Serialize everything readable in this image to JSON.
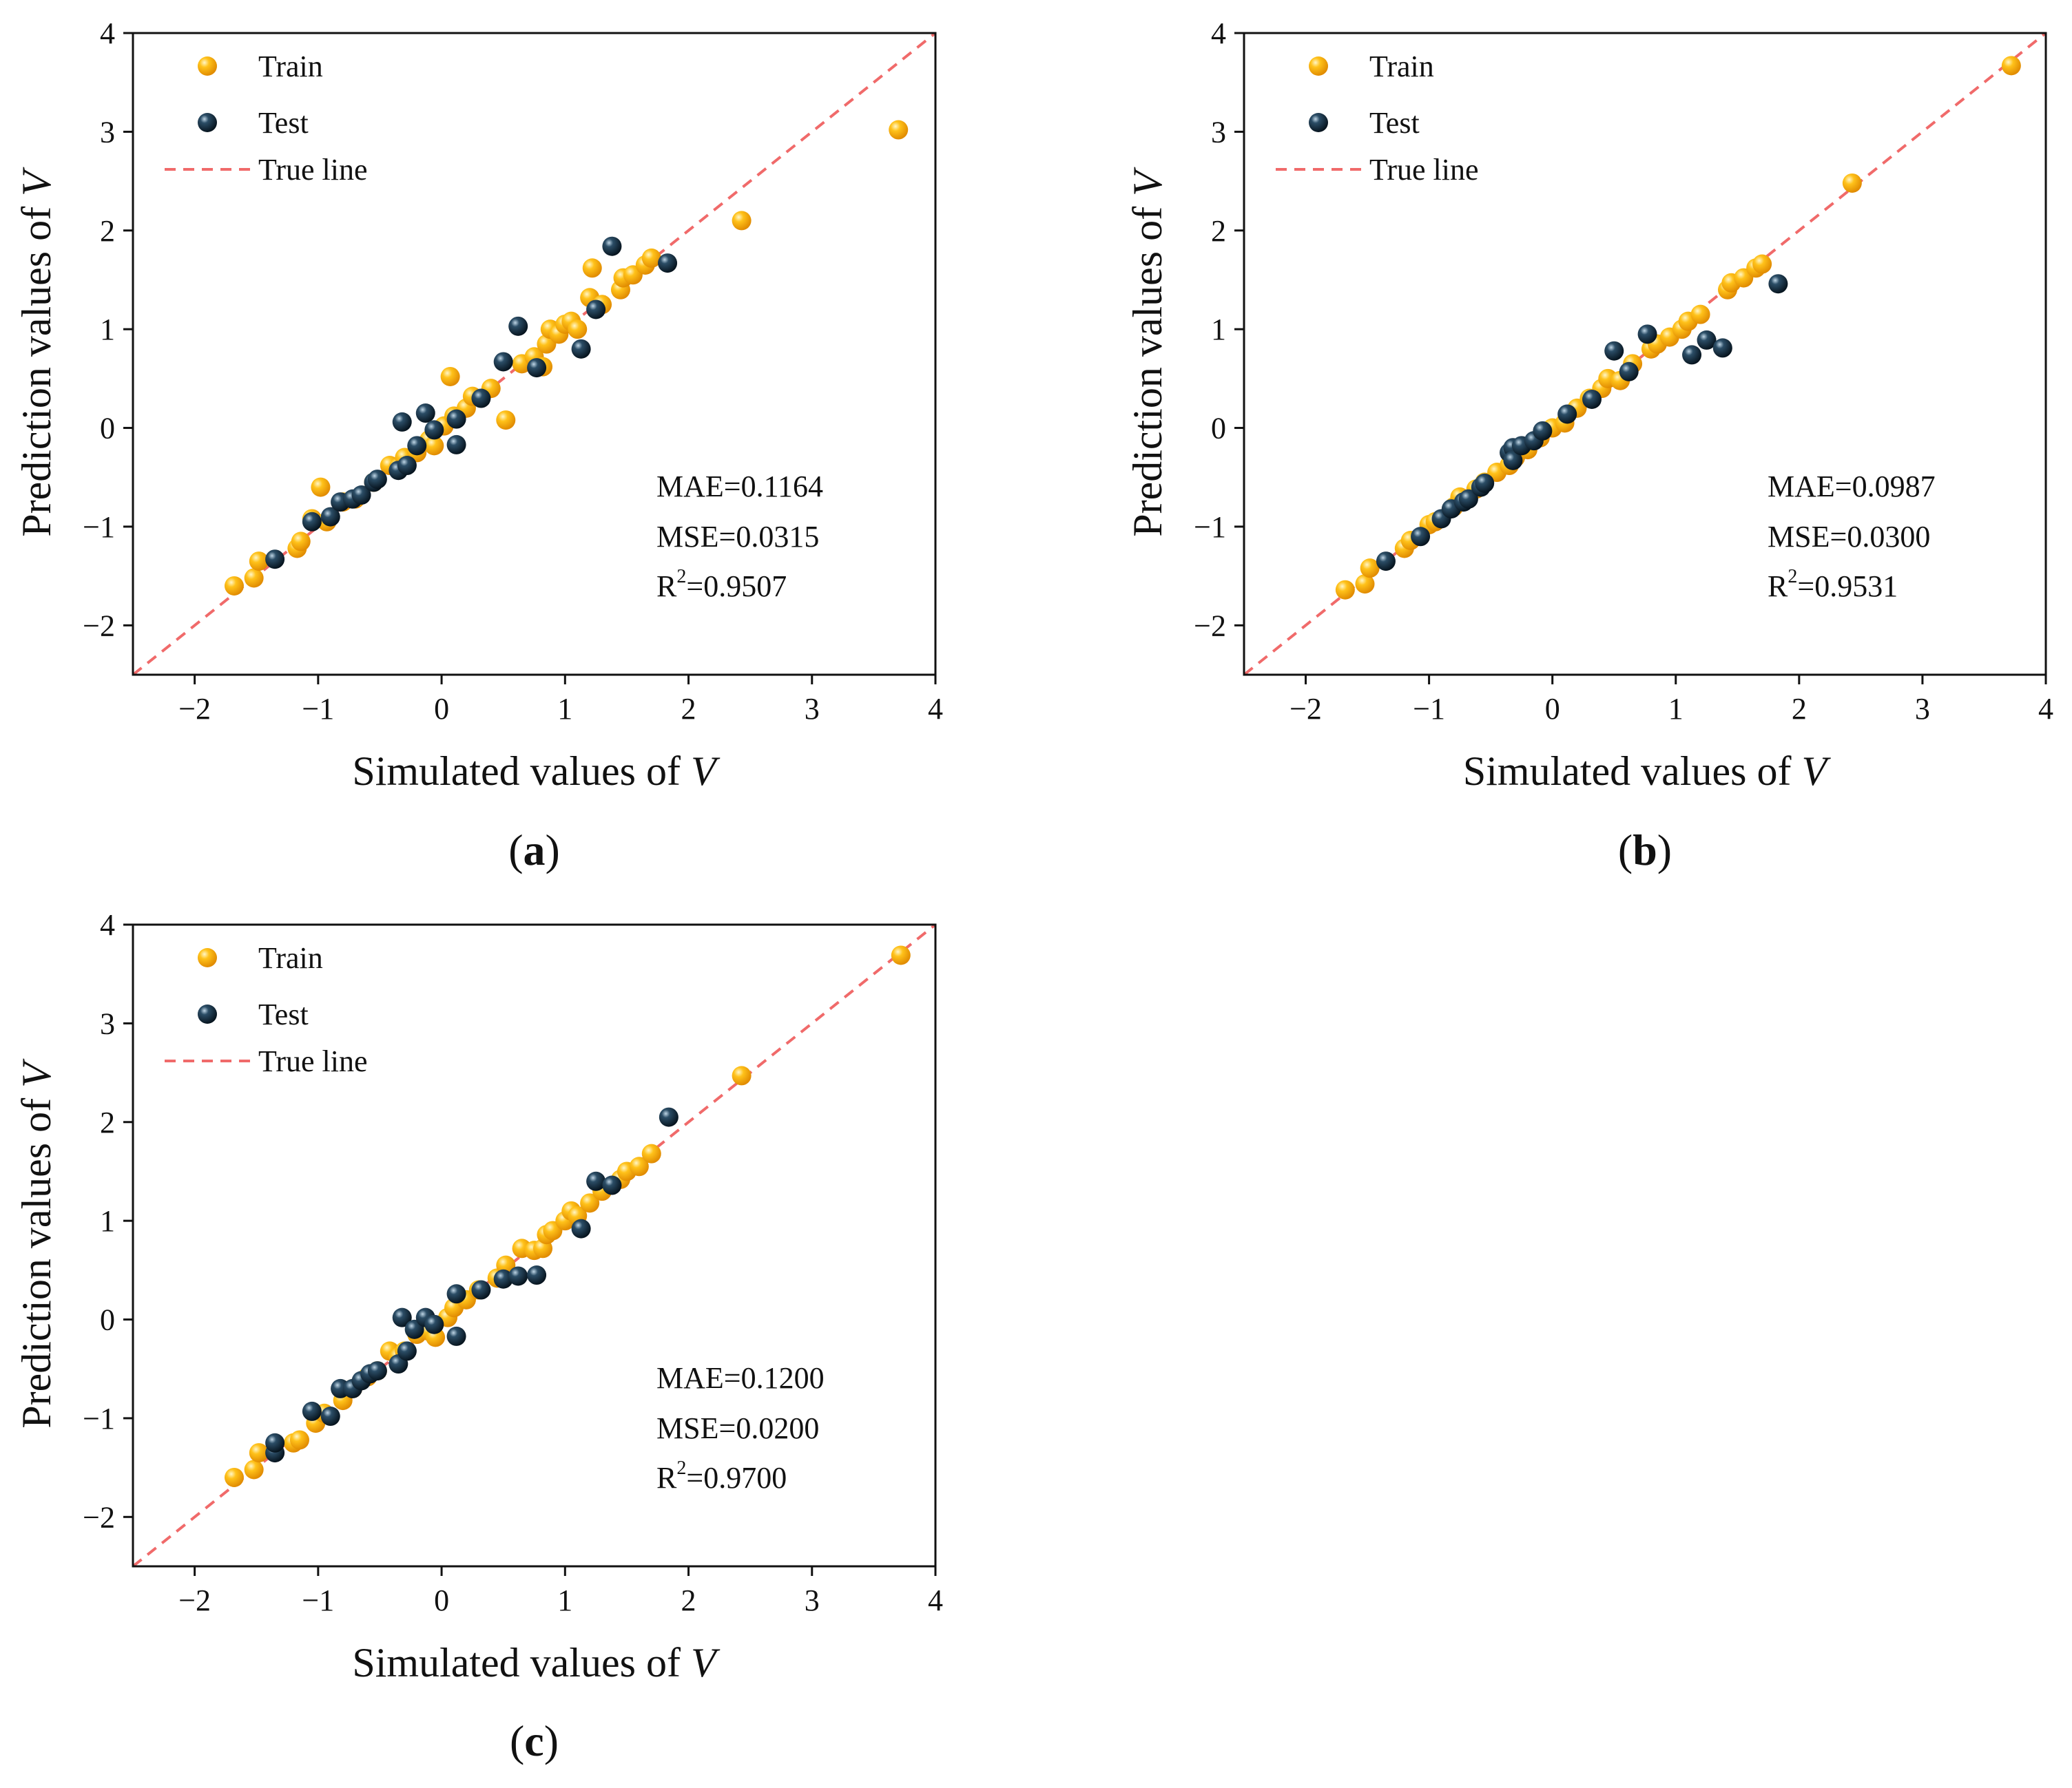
{
  "chart_data": [
    {
      "type": "scatter",
      "panel_label": {
        "open": "(",
        "letter": "a",
        "close": ")"
      },
      "xlabel": {
        "text": "Simulated values of ",
        "var": "V"
      },
      "ylabel": {
        "text": "Prediction values of ",
        "var": "V"
      },
      "xlim": [
        -2.5,
        4
      ],
      "ylim": [
        -2.5,
        4
      ],
      "xticks": [
        -2,
        -1,
        0,
        1,
        2,
        3,
        4
      ],
      "yticks": [
        -2,
        -1,
        0,
        1,
        2,
        3,
        4
      ],
      "grid": false,
      "legend_position": "top-left",
      "series": [
        {
          "name": "Train",
          "color": "#FFB300",
          "marker": "sphere",
          "points": [
            [
              -1.68,
              -1.6
            ],
            [
              -1.52,
              -1.52
            ],
            [
              -1.48,
              -1.35
            ],
            [
              -1.17,
              -1.22
            ],
            [
              -1.14,
              -1.15
            ],
            [
              -1.05,
              -0.92
            ],
            [
              -0.98,
              -0.6
            ],
            [
              -0.93,
              -0.95
            ],
            [
              -0.8,
              -0.75
            ],
            [
              -0.7,
              -0.72
            ],
            [
              -0.55,
              -0.55
            ],
            [
              -0.42,
              -0.38
            ],
            [
              -0.35,
              -0.4
            ],
            [
              -0.3,
              -0.3
            ],
            [
              -0.2,
              -0.25
            ],
            [
              -0.1,
              -0.12
            ],
            [
              -0.06,
              -0.18
            ],
            [
              0.02,
              0.02
            ],
            [
              0.07,
              0.52
            ],
            [
              0.1,
              0.12
            ],
            [
              0.2,
              0.2
            ],
            [
              0.25,
              0.32
            ],
            [
              0.4,
              0.4
            ],
            [
              0.52,
              0.08
            ],
            [
              0.65,
              0.65
            ],
            [
              0.75,
              0.72
            ],
            [
              0.82,
              0.62
            ],
            [
              0.85,
              0.85
            ],
            [
              0.88,
              1.0
            ],
            [
              0.95,
              0.95
            ],
            [
              1.0,
              1.05
            ],
            [
              1.05,
              1.08
            ],
            [
              1.1,
              1.0
            ],
            [
              1.2,
              1.32
            ],
            [
              1.22,
              1.62
            ],
            [
              1.3,
              1.25
            ],
            [
              1.45,
              1.4
            ],
            [
              1.47,
              1.52
            ],
            [
              1.55,
              1.55
            ],
            [
              1.65,
              1.65
            ],
            [
              1.7,
              1.72
            ],
            [
              2.43,
              2.1
            ],
            [
              3.7,
              3.02
            ]
          ]
        },
        {
          "name": "Test",
          "color": "#0C2233",
          "marker": "sphere",
          "points": [
            [
              -1.35,
              -1.33
            ],
            [
              -1.05,
              -0.95
            ],
            [
              -0.9,
              -0.9
            ],
            [
              -0.82,
              -0.75
            ],
            [
              -0.72,
              -0.72
            ],
            [
              -0.65,
              -0.68
            ],
            [
              -0.55,
              -0.55
            ],
            [
              -0.52,
              -0.52
            ],
            [
              -0.35,
              -0.43
            ],
            [
              -0.32,
              0.06
            ],
            [
              -0.28,
              -0.38
            ],
            [
              -0.2,
              -0.18
            ],
            [
              -0.13,
              0.15
            ],
            [
              -0.06,
              -0.02
            ],
            [
              0.12,
              0.09
            ],
            [
              0.12,
              -0.17
            ],
            [
              0.32,
              0.3
            ],
            [
              0.5,
              0.67
            ],
            [
              0.62,
              1.03
            ],
            [
              0.77,
              0.61
            ],
            [
              1.13,
              0.8
            ],
            [
              1.25,
              1.2
            ],
            [
              1.38,
              1.84
            ],
            [
              1.83,
              1.67
            ]
          ]
        },
        {
          "name": "True line",
          "color": "#F06A6A",
          "type": "line",
          "style": "dashed",
          "x": [
            -2.5,
            4
          ],
          "y": [
            -2.5,
            4
          ]
        }
      ],
      "annotations": [
        {
          "label": "MAE",
          "value": "0.1164"
        },
        {
          "label": "MSE",
          "value": "0.0315"
        },
        {
          "label": "R",
          "sup": "2",
          "value": "0.9507"
        }
      ]
    },
    {
      "type": "scatter",
      "panel_label": {
        "open": "(",
        "letter": "b",
        "close": ")"
      },
      "xlabel": {
        "text": "Simulated values of ",
        "var": "V"
      },
      "ylabel": {
        "text": "Prediction values of ",
        "var": "V"
      },
      "xlim": [
        -2.5,
        4
      ],
      "ylim": [
        -2.5,
        4
      ],
      "xticks": [
        -2,
        -1,
        0,
        1,
        2,
        3,
        4
      ],
      "yticks": [
        -2,
        -1,
        0,
        1,
        2,
        3,
        4
      ],
      "grid": false,
      "legend_position": "top-left",
      "series": [
        {
          "name": "Train",
          "color": "#FFB300",
          "marker": "sphere",
          "points": [
            [
              -1.68,
              -1.64
            ],
            [
              -1.52,
              -1.58
            ],
            [
              -1.48,
              -1.42
            ],
            [
              -1.2,
              -1.22
            ],
            [
              -1.15,
              -1.14
            ],
            [
              -1.0,
              -0.98
            ],
            [
              -0.95,
              -0.95
            ],
            [
              -0.8,
              -0.8
            ],
            [
              -0.75,
              -0.7
            ],
            [
              -0.62,
              -0.62
            ],
            [
              -0.55,
              -0.55
            ],
            [
              -0.45,
              -0.45
            ],
            [
              -0.35,
              -0.38
            ],
            [
              -0.3,
              -0.3
            ],
            [
              -0.2,
              -0.22
            ],
            [
              -0.1,
              -0.1
            ],
            [
              0.0,
              0.0
            ],
            [
              0.1,
              0.05
            ],
            [
              0.2,
              0.2
            ],
            [
              0.3,
              0.3
            ],
            [
              0.4,
              0.4
            ],
            [
              0.45,
              0.5
            ],
            [
              0.55,
              0.48
            ],
            [
              0.65,
              0.65
            ],
            [
              0.8,
              0.8
            ],
            [
              0.85,
              0.85
            ],
            [
              0.95,
              0.92
            ],
            [
              1.05,
              1.0
            ],
            [
              1.1,
              1.08
            ],
            [
              1.2,
              1.15
            ],
            [
              1.42,
              1.4
            ],
            [
              1.45,
              1.47
            ],
            [
              1.55,
              1.52
            ],
            [
              1.65,
              1.62
            ],
            [
              1.7,
              1.66
            ],
            [
              2.43,
              2.48
            ],
            [
              3.72,
              3.67
            ]
          ]
        },
        {
          "name": "Test",
          "color": "#0C2233",
          "marker": "sphere",
          "points": [
            [
              -1.35,
              -1.35
            ],
            [
              -1.07,
              -1.1
            ],
            [
              -0.9,
              -0.92
            ],
            [
              -0.82,
              -0.82
            ],
            [
              -0.72,
              -0.75
            ],
            [
              -0.68,
              -0.72
            ],
            [
              -0.58,
              -0.6
            ],
            [
              -0.55,
              -0.56
            ],
            [
              -0.35,
              -0.25
            ],
            [
              -0.32,
              -0.2
            ],
            [
              -0.32,
              -0.33
            ],
            [
              -0.25,
              -0.18
            ],
            [
              -0.15,
              -0.13
            ],
            [
              -0.08,
              -0.03
            ],
            [
              0.12,
              0.14
            ],
            [
              0.32,
              0.29
            ],
            [
              0.5,
              0.78
            ],
            [
              0.62,
              0.57
            ],
            [
              0.77,
              0.95
            ],
            [
              1.13,
              0.74
            ],
            [
              1.25,
              0.89
            ],
            [
              1.38,
              0.81
            ],
            [
              1.83,
              1.46
            ]
          ]
        },
        {
          "name": "True line",
          "color": "#F06A6A",
          "type": "line",
          "style": "dashed",
          "x": [
            -2.5,
            4
          ],
          "y": [
            -2.5,
            4
          ]
        }
      ],
      "annotations": [
        {
          "label": "MAE",
          "value": "0.0987"
        },
        {
          "label": "MSE",
          "value": "0.0300"
        },
        {
          "label": "R",
          "sup": "2",
          "value": "0.9531"
        }
      ]
    },
    {
      "type": "scatter",
      "panel_label": {
        "open": "(",
        "letter": "c",
        "close": ")"
      },
      "xlabel": {
        "text": "Simulated values of ",
        "var": "V"
      },
      "ylabel": {
        "text": "Prediction values of ",
        "var": "V"
      },
      "xlim": [
        -2.5,
        4
      ],
      "ylim": [
        -2.5,
        4
      ],
      "xticks": [
        -2,
        -1,
        0,
        1,
        2,
        3,
        4
      ],
      "yticks": [
        -2,
        -1,
        0,
        1,
        2,
        3,
        4
      ],
      "grid": false,
      "legend_position": "top-left",
      "series": [
        {
          "name": "Train",
          "color": "#FFB300",
          "marker": "sphere",
          "points": [
            [
              -1.68,
              -1.6
            ],
            [
              -1.52,
              -1.52
            ],
            [
              -1.48,
              -1.35
            ],
            [
              -1.2,
              -1.25
            ],
            [
              -1.15,
              -1.22
            ],
            [
              -1.02,
              -1.05
            ],
            [
              -0.95,
              -0.95
            ],
            [
              -0.8,
              -0.82
            ],
            [
              -0.72,
              -0.7
            ],
            [
              -0.6,
              -0.58
            ],
            [
              -0.52,
              -0.52
            ],
            [
              -0.42,
              -0.32
            ],
            [
              -0.35,
              -0.38
            ],
            [
              -0.3,
              -0.32
            ],
            [
              -0.2,
              -0.15
            ],
            [
              -0.1,
              -0.12
            ],
            [
              -0.05,
              -0.18
            ],
            [
              0.05,
              0.02
            ],
            [
              0.1,
              0.12
            ],
            [
              0.2,
              0.2
            ],
            [
              0.3,
              0.3
            ],
            [
              0.45,
              0.42
            ],
            [
              0.52,
              0.55
            ],
            [
              0.65,
              0.72
            ],
            [
              0.75,
              0.7
            ],
            [
              0.82,
              0.72
            ],
            [
              0.85,
              0.86
            ],
            [
              0.9,
              0.9
            ],
            [
              1.0,
              1.0
            ],
            [
              1.05,
              1.1
            ],
            [
              1.1,
              1.05
            ],
            [
              1.2,
              1.18
            ],
            [
              1.3,
              1.3
            ],
            [
              1.45,
              1.42
            ],
            [
              1.5,
              1.5
            ],
            [
              1.6,
              1.55
            ],
            [
              1.7,
              1.68
            ],
            [
              2.43,
              2.47
            ],
            [
              3.72,
              3.69
            ]
          ]
        },
        {
          "name": "Test",
          "color": "#0C2233",
          "marker": "sphere",
          "points": [
            [
              -1.35,
              -1.35
            ],
            [
              -1.35,
              -1.25
            ],
            [
              -1.05,
              -0.93
            ],
            [
              -0.9,
              -0.98
            ],
            [
              -0.82,
              -0.7
            ],
            [
              -0.72,
              -0.7
            ],
            [
              -0.65,
              -0.62
            ],
            [
              -0.58,
              -0.55
            ],
            [
              -0.52,
              -0.52
            ],
            [
              -0.35,
              -0.45
            ],
            [
              -0.32,
              0.02
            ],
            [
              -0.28,
              -0.32
            ],
            [
              -0.22,
              -0.1
            ],
            [
              -0.13,
              0.02
            ],
            [
              -0.06,
              -0.05
            ],
            [
              0.12,
              0.26
            ],
            [
              0.12,
              -0.17
            ],
            [
              0.32,
              0.3
            ],
            [
              0.5,
              0.41
            ],
            [
              0.62,
              0.44
            ],
            [
              0.77,
              0.45
            ],
            [
              1.13,
              0.92
            ],
            [
              1.25,
              1.4
            ],
            [
              1.38,
              1.36
            ],
            [
              1.84,
              2.05
            ]
          ]
        },
        {
          "name": "True line",
          "color": "#F06A6A",
          "type": "line",
          "style": "dashed",
          "x": [
            -2.5,
            4
          ],
          "y": [
            -2.5,
            4
          ]
        }
      ],
      "annotations": [
        {
          "label": "MAE",
          "value": "0.1200"
        },
        {
          "label": "MSE",
          "value": "0.0200"
        },
        {
          "label": "R",
          "sup": "2",
          "value": "0.9700"
        }
      ]
    }
  ]
}
